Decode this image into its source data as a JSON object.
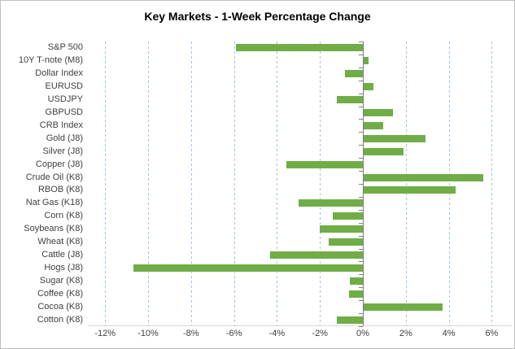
{
  "chart_data": {
    "type": "bar",
    "orientation": "horizontal",
    "title": "Key Markets - 1-Week Percentage Change",
    "categories": [
      "S&P 500",
      "10Y T-note (M8)",
      "Dollar Index",
      "EURUSD",
      "USDJPY",
      "GBPUSD",
      "CRB Index",
      "Gold (J8)",
      "Silver (J8)",
      "Copper (J8)",
      "Crude Oil (K8)",
      "RBOB (K8)",
      "Nat Gas (K18)",
      "Corn (K8)",
      "Soybeans (K8)",
      "Wheat (K8)",
      "Cattle (J8)",
      "Hogs (J8)",
      "Sugar (K8)",
      "Coffee (K8)",
      "Cocoa (K8)",
      "Cotton (K8)"
    ],
    "values": [
      -5.9,
      0.25,
      -0.85,
      0.5,
      -1.2,
      1.4,
      0.95,
      2.9,
      1.9,
      -3.55,
      5.6,
      4.3,
      -3.0,
      -1.4,
      -2.0,
      -1.6,
      -4.3,
      -10.7,
      -0.6,
      -0.65,
      3.7,
      -1.2
    ],
    "value_unit": "%",
    "xlabel": "",
    "ylabel": "",
    "x_axis": {
      "min": -12,
      "max": 6,
      "tick_step": 2,
      "tick_values": [
        -12,
        -10,
        -8,
        -6,
        -4,
        -2,
        0,
        2,
        4,
        6
      ],
      "tick_labels": [
        "-12%",
        "-10%",
        "-8%",
        "-6%",
        "-4%",
        "-2%",
        "0%",
        "2%",
        "4%",
        "6%"
      ]
    },
    "grid": "vertical-dashed",
    "legend": "none",
    "colors": {
      "bar": "#70ad47",
      "gridline": "#9dc3e6",
      "zero_axis": "#7f7f7f",
      "baseline": "#d9d9d9",
      "label_text": "#404040",
      "title_text": "#000000",
      "border": "#bfbfbf",
      "background": "#ffffff"
    }
  }
}
